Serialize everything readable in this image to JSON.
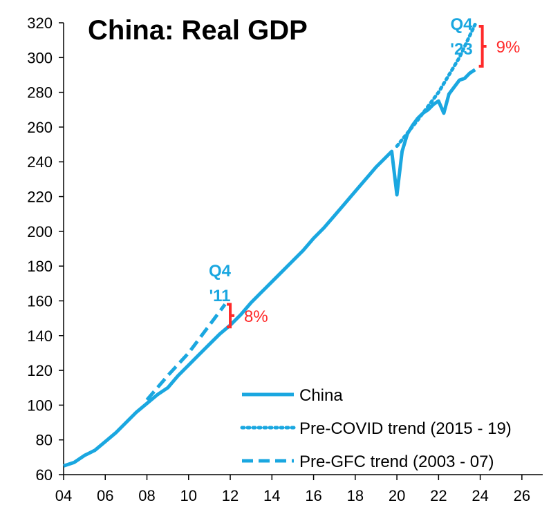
{
  "chart_data": {
    "type": "line",
    "title": "China: Real GDP",
    "xlabel": "",
    "ylabel": "",
    "xlim": [
      2004,
      2027
    ],
    "ylim": [
      60,
      320
    ],
    "x_tick_values": [
      2004,
      2006,
      2008,
      2010,
      2012,
      2014,
      2016,
      2018,
      2020,
      2022,
      2024,
      2026
    ],
    "x_tick_labels": [
      "04",
      "06",
      "08",
      "10",
      "12",
      "14",
      "16",
      "18",
      "20",
      "22",
      "24",
      "26"
    ],
    "y_ticks": [
      60,
      80,
      100,
      120,
      140,
      160,
      180,
      200,
      220,
      240,
      260,
      280,
      300,
      320
    ],
    "grid": false,
    "legend_position": "bottom-right",
    "colors": {
      "series": "#1aa7e0",
      "gap": "#ff2a2a"
    },
    "series": [
      {
        "name": "China",
        "style": "solid",
        "x": [
          2004.0,
          2004.5,
          2005.0,
          2005.5,
          2006.0,
          2006.5,
          2007.0,
          2007.5,
          2008.0,
          2008.5,
          2009.0,
          2009.5,
          2010.0,
          2010.5,
          2011.0,
          2011.5,
          2012.0,
          2012.5,
          2013.0,
          2013.5,
          2014.0,
          2014.5,
          2015.0,
          2015.5,
          2016.0,
          2016.5,
          2017.0,
          2017.5,
          2018.0,
          2018.5,
          2019.0,
          2019.5,
          2019.75,
          2020.0,
          2020.25,
          2020.5,
          2020.75,
          2021.0,
          2021.25,
          2021.5,
          2021.75,
          2022.0,
          2022.25,
          2022.5,
          2022.75,
          2023.0,
          2023.25,
          2023.5,
          2023.75
        ],
        "values": [
          65,
          67,
          71,
          74,
          79,
          84,
          90,
          96,
          101,
          106,
          110,
          117,
          123,
          129,
          135,
          141,
          146,
          152,
          159,
          165,
          171,
          177,
          183,
          189,
          196,
          202,
          209,
          216,
          223,
          230,
          237,
          243,
          246,
          221,
          246,
          256,
          261,
          265,
          268,
          270,
          273,
          275,
          268,
          279,
          283,
          287,
          288,
          291,
          293
        ]
      },
      {
        "name": "Pre-COVID trend (2015 - 19)",
        "style": "dotted",
        "x": [
          2020.0,
          2021.0,
          2022.0,
          2023.0,
          2023.75
        ],
        "values": [
          249,
          264,
          280,
          300,
          319
        ]
      },
      {
        "name": "Pre-GFC trend (2003 - 07)",
        "style": "dashed",
        "x": [
          2008.0,
          2009.0,
          2010.0,
          2011.0,
          2011.75
        ],
        "values": [
          103,
          117,
          130,
          146,
          158
        ]
      }
    ],
    "annotations": [
      {
        "name": "q4-11",
        "lines": [
          "Q4",
          "'11"
        ],
        "x": 2011.5,
        "y": 174
      },
      {
        "name": "q4-23",
        "lines": [
          "Q4",
          "'23"
        ],
        "x": 2023.1,
        "y": 316
      }
    ],
    "gaps": [
      {
        "name": "gap-2011",
        "label": "8%",
        "x": 2012.0,
        "y_low": 145,
        "y_high": 158
      },
      {
        "name": "gap-2023",
        "label": "9%",
        "x": 2024.1,
        "y_low": 295,
        "y_high": 318
      }
    ]
  }
}
